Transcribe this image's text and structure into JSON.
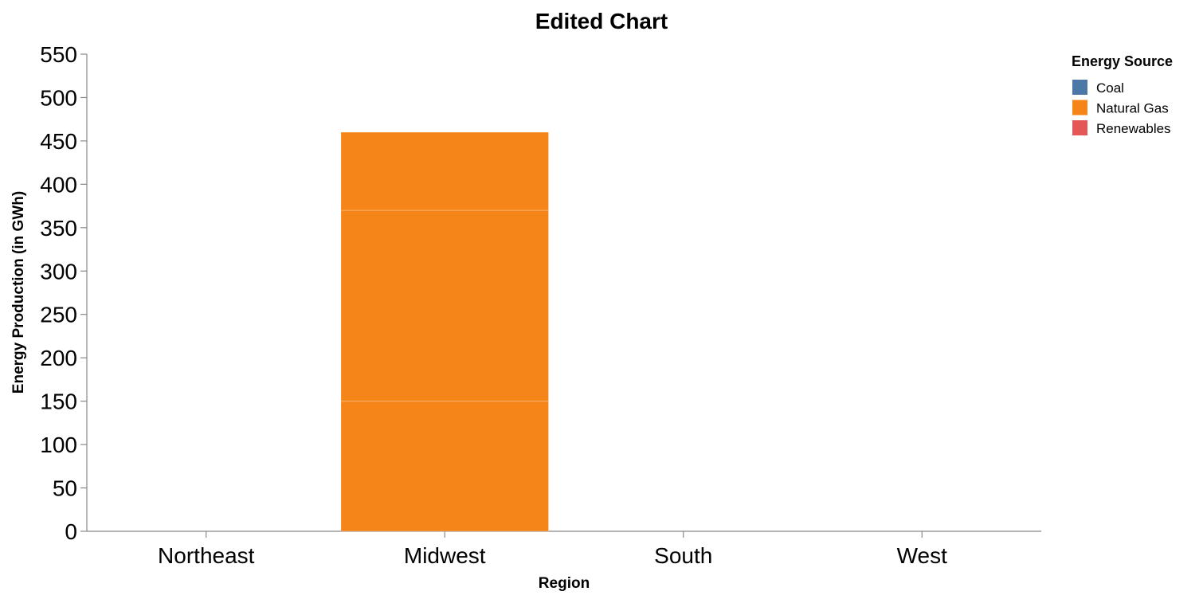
{
  "chart_data": {
    "type": "bar",
    "stacked": true,
    "title": "Edited Chart",
    "xlabel": "Region",
    "ylabel": "Energy Production (in GWh)",
    "categories": [
      "Northeast",
      "Midwest",
      "South",
      "West"
    ],
    "ylim": [
      0,
      550
    ],
    "yticks": [
      "0",
      "50",
      "100",
      "150",
      "200",
      "250",
      "300",
      "350",
      "400",
      "450",
      "500",
      "550"
    ],
    "grid": false,
    "legend": {
      "title": "Energy Source",
      "position": "top-right",
      "entries": [
        {
          "label": "Coal",
          "color": "#4c78a8"
        },
        {
          "label": "Natural Gas",
          "color": "#f58518"
        },
        {
          "label": "Renewables",
          "color": "#e45756"
        }
      ]
    },
    "segments": [
      {
        "category": "Midwest",
        "source": "Natural Gas",
        "value": 150,
        "color": "#f58518"
      },
      {
        "category": "Midwest",
        "source": "Natural Gas",
        "value": 220,
        "color": "#f58518"
      },
      {
        "category": "Midwest",
        "source": "Natural Gas",
        "value": 90,
        "color": "#f58518"
      }
    ]
  }
}
